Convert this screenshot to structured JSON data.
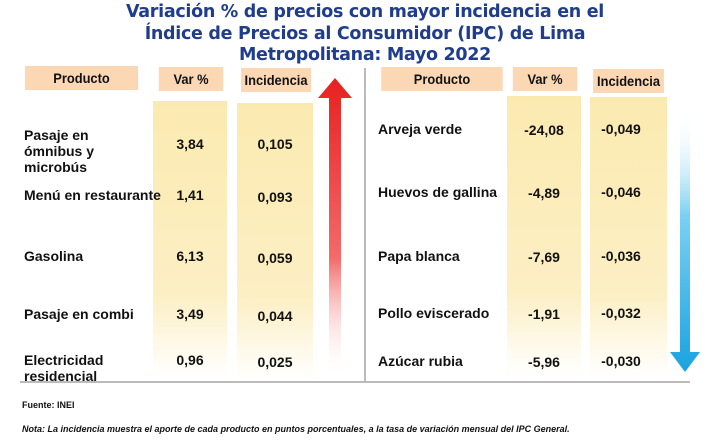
{
  "title": {
    "line1": "Variación % de precios con mayor incidencia en el",
    "line2": "Índice de Precios al Consumidor (IPC) de Lima",
    "line3": "Metropolitana: Mayo 2022"
  },
  "headers": {
    "producto": "Producto",
    "var": "Var %",
    "incidencia": "Incidencia"
  },
  "increases": [
    {
      "producto": "Pasaje en ómnibus y microbús",
      "var": "3,84",
      "incidencia": "0,105"
    },
    {
      "producto": "Menú en restaurante",
      "var": "1,41",
      "incidencia": "0,093"
    },
    {
      "producto": "Gasolina",
      "var": "6,13",
      "incidencia": "0,059"
    },
    {
      "producto": "Pasaje en combi",
      "var": "3,49",
      "incidencia": "0,044"
    },
    {
      "producto": "Electricidad residencial",
      "var": "0,96",
      "incidencia": "0,025"
    }
  ],
  "decreases": [
    {
      "producto": "Arveja verde",
      "var": "-24,08",
      "incidencia": "-0,049"
    },
    {
      "producto": "Huevos de gallina",
      "var": "-4,89",
      "incidencia": "-0,046"
    },
    {
      "producto": "Papa blanca",
      "var": "-7,69",
      "incidencia": "-0,036"
    },
    {
      "producto": "Pollo eviscerado",
      "var": "-1,91",
      "incidencia": "-0,032"
    },
    {
      "producto": "Azúcar rubia",
      "var": "-5,96",
      "incidencia": "-0,030"
    }
  ],
  "colors": {
    "title": "#1f3d8c",
    "header_bg": "#fbd7b3",
    "column_bg": "#fbeab0",
    "up_arrow": "#e82020",
    "down_arrow": "#1aa3e0"
  },
  "icons": {
    "up": "arrow-up-icon",
    "down": "arrow-down-icon"
  },
  "footer": {
    "source": "Fuente: INEI",
    "note": "Nota: La incidencia muestra el aporte de cada producto en puntos porcentuales, a la tasa de variación mensual del IPC General."
  }
}
